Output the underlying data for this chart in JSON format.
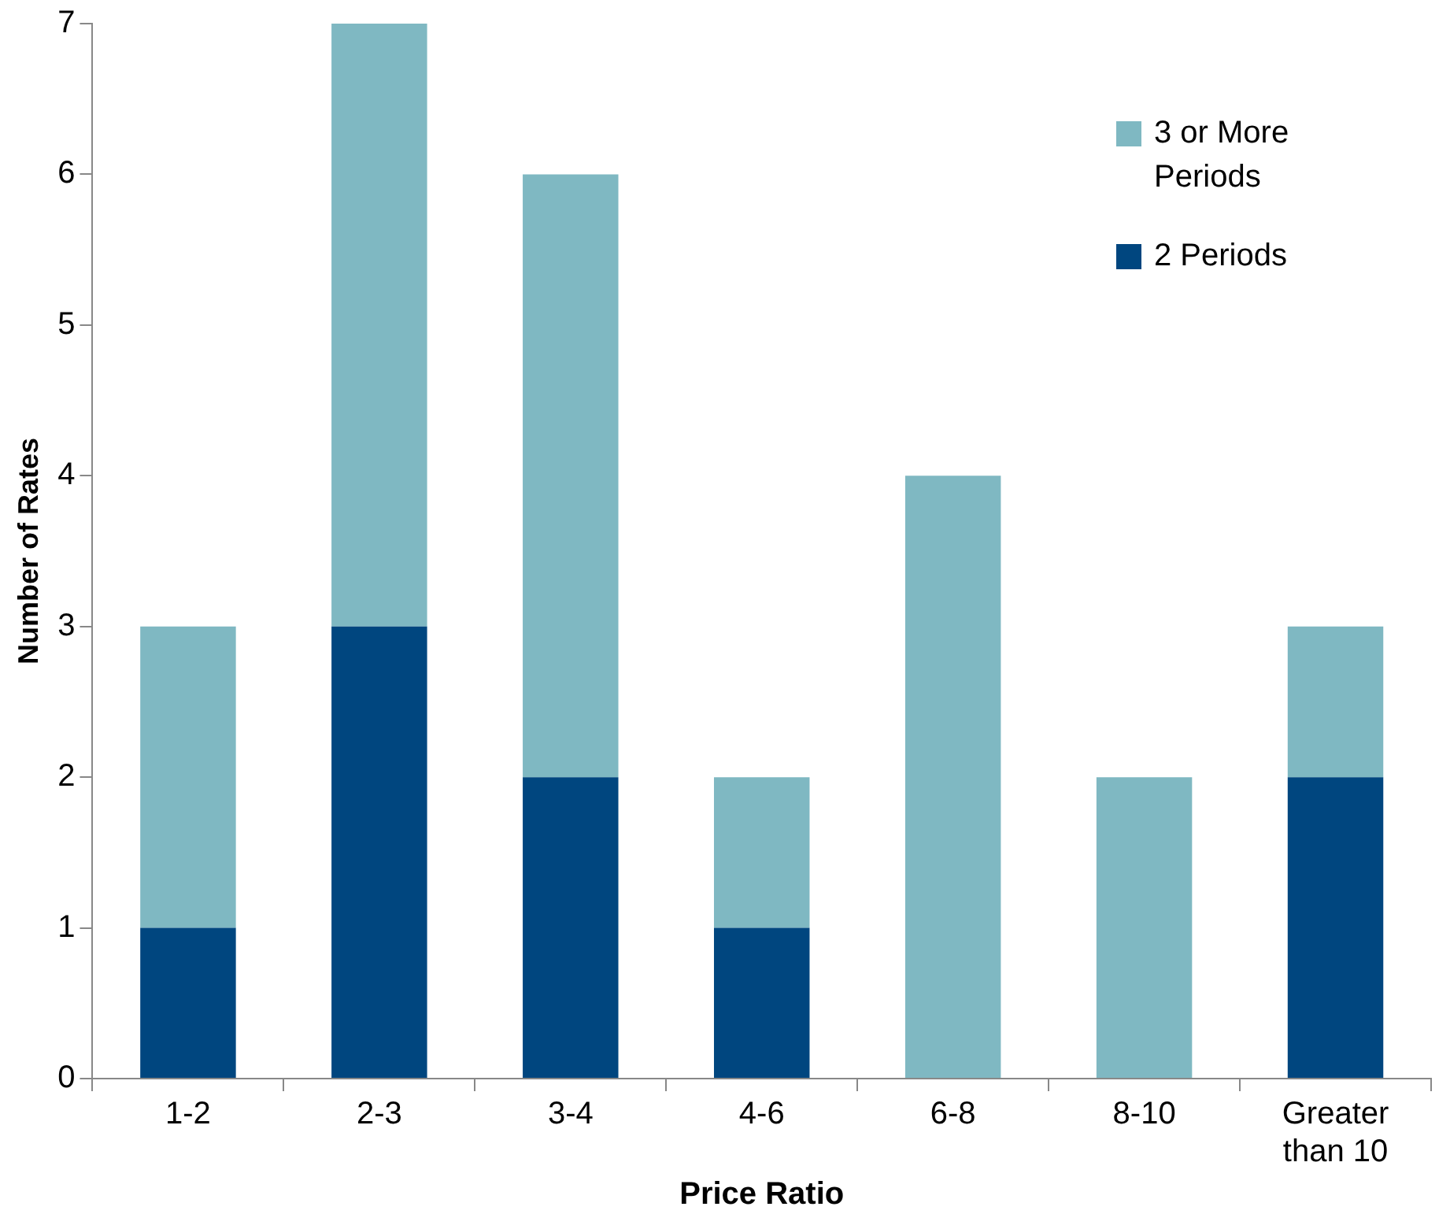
{
  "chart_data": {
    "type": "bar",
    "stacked": true,
    "xlabel": "Price Ratio",
    "ylabel": "Number of Rates",
    "categories": [
      "1-2",
      "2-3",
      "3-4",
      "4-6",
      "6-8",
      "8-10",
      "Greater than 10"
    ],
    "series": [
      {
        "name": "2 Periods",
        "color": "#00467f",
        "values": [
          1,
          3,
          2,
          1,
          0,
          0,
          2
        ]
      },
      {
        "name": "3 or More Periods",
        "color": "#7fb8c2",
        "values": [
          2,
          4,
          4,
          1,
          4,
          2,
          1
        ]
      }
    ],
    "ylim": [
      0,
      7
    ],
    "yticks": [
      0,
      1,
      2,
      3,
      4,
      5,
      6,
      7
    ],
    "grid": false,
    "legend": "top right"
  }
}
